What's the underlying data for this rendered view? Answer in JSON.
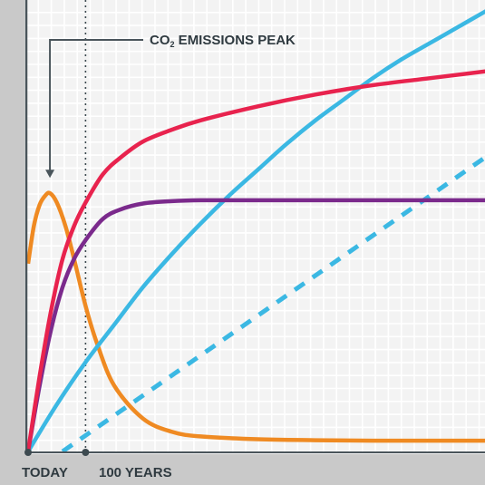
{
  "chart_data": {
    "type": "line",
    "xlim": [
      0,
      800
    ],
    "ylim": [
      0,
      100
    ],
    "grid": true,
    "legend": "none",
    "x_tick_labels": [
      {
        "x": 0,
        "label": "TODAY"
      },
      {
        "x": 100,
        "label": "100 YEARS"
      }
    ],
    "annotation": {
      "text_main": "CO",
      "text_sub": "2",
      "text_rest": " EMISSIONS PEAK",
      "target": {
        "x": 38,
        "y": 54
      }
    },
    "reference_line": {
      "x": 100,
      "style": "dotted",
      "color": "#3d4a50"
    },
    "series": [
      {
        "color": "#ef8a22",
        "style": "solid",
        "x": [
          0,
          10,
          20,
          30,
          38,
          50,
          65,
          80,
          100,
          120,
          150,
          200,
          250,
          300,
          400,
          500,
          600,
          700,
          800
        ],
        "y": [
          40,
          48,
          52.5,
          54.5,
          55,
          53,
          48,
          41,
          31,
          23,
          14,
          7,
          4.2,
          3.2,
          2.6,
          2.4,
          2.3,
          2.3,
          2.3
        ]
      },
      {
        "color": "#e8234e",
        "style": "solid",
        "x": [
          0,
          20,
          40,
          60,
          80,
          100,
          130,
          160,
          200,
          250,
          300,
          400,
          500,
          600,
          700,
          800
        ],
        "y": [
          0,
          16,
          30,
          41,
          48,
          53,
          59,
          62.5,
          66,
          68.5,
          70.5,
          73.5,
          76,
          78,
          79.5,
          81
        ]
      },
      {
        "color": "#7b2a8c",
        "style": "solid",
        "x": [
          0,
          20,
          40,
          60,
          80,
          100,
          130,
          160,
          200,
          250,
          300,
          400,
          500,
          600,
          700,
          800
        ],
        "y": [
          0,
          14,
          26,
          35,
          41,
          45,
          49.5,
          51.5,
          52.8,
          53.3,
          53.5,
          53.5,
          53.5,
          53.5,
          53.5,
          53.5
        ]
      },
      {
        "color": "#3bb8e3",
        "style": "solid",
        "x": [
          0,
          50,
          100,
          150,
          200,
          250,
          300,
          350,
          400,
          450,
          500,
          550,
          600,
          650,
          700,
          750,
          800
        ],
        "y": [
          0,
          10,
          19,
          27,
          35,
          42,
          48.5,
          54.5,
          60,
          65.5,
          70.5,
          75,
          79.5,
          83.5,
          87,
          90.5,
          94
        ]
      },
      {
        "color": "#3bb8e3",
        "style": "dashed",
        "x": [
          60,
          800
        ],
        "y": [
          0,
          63
        ]
      }
    ]
  }
}
